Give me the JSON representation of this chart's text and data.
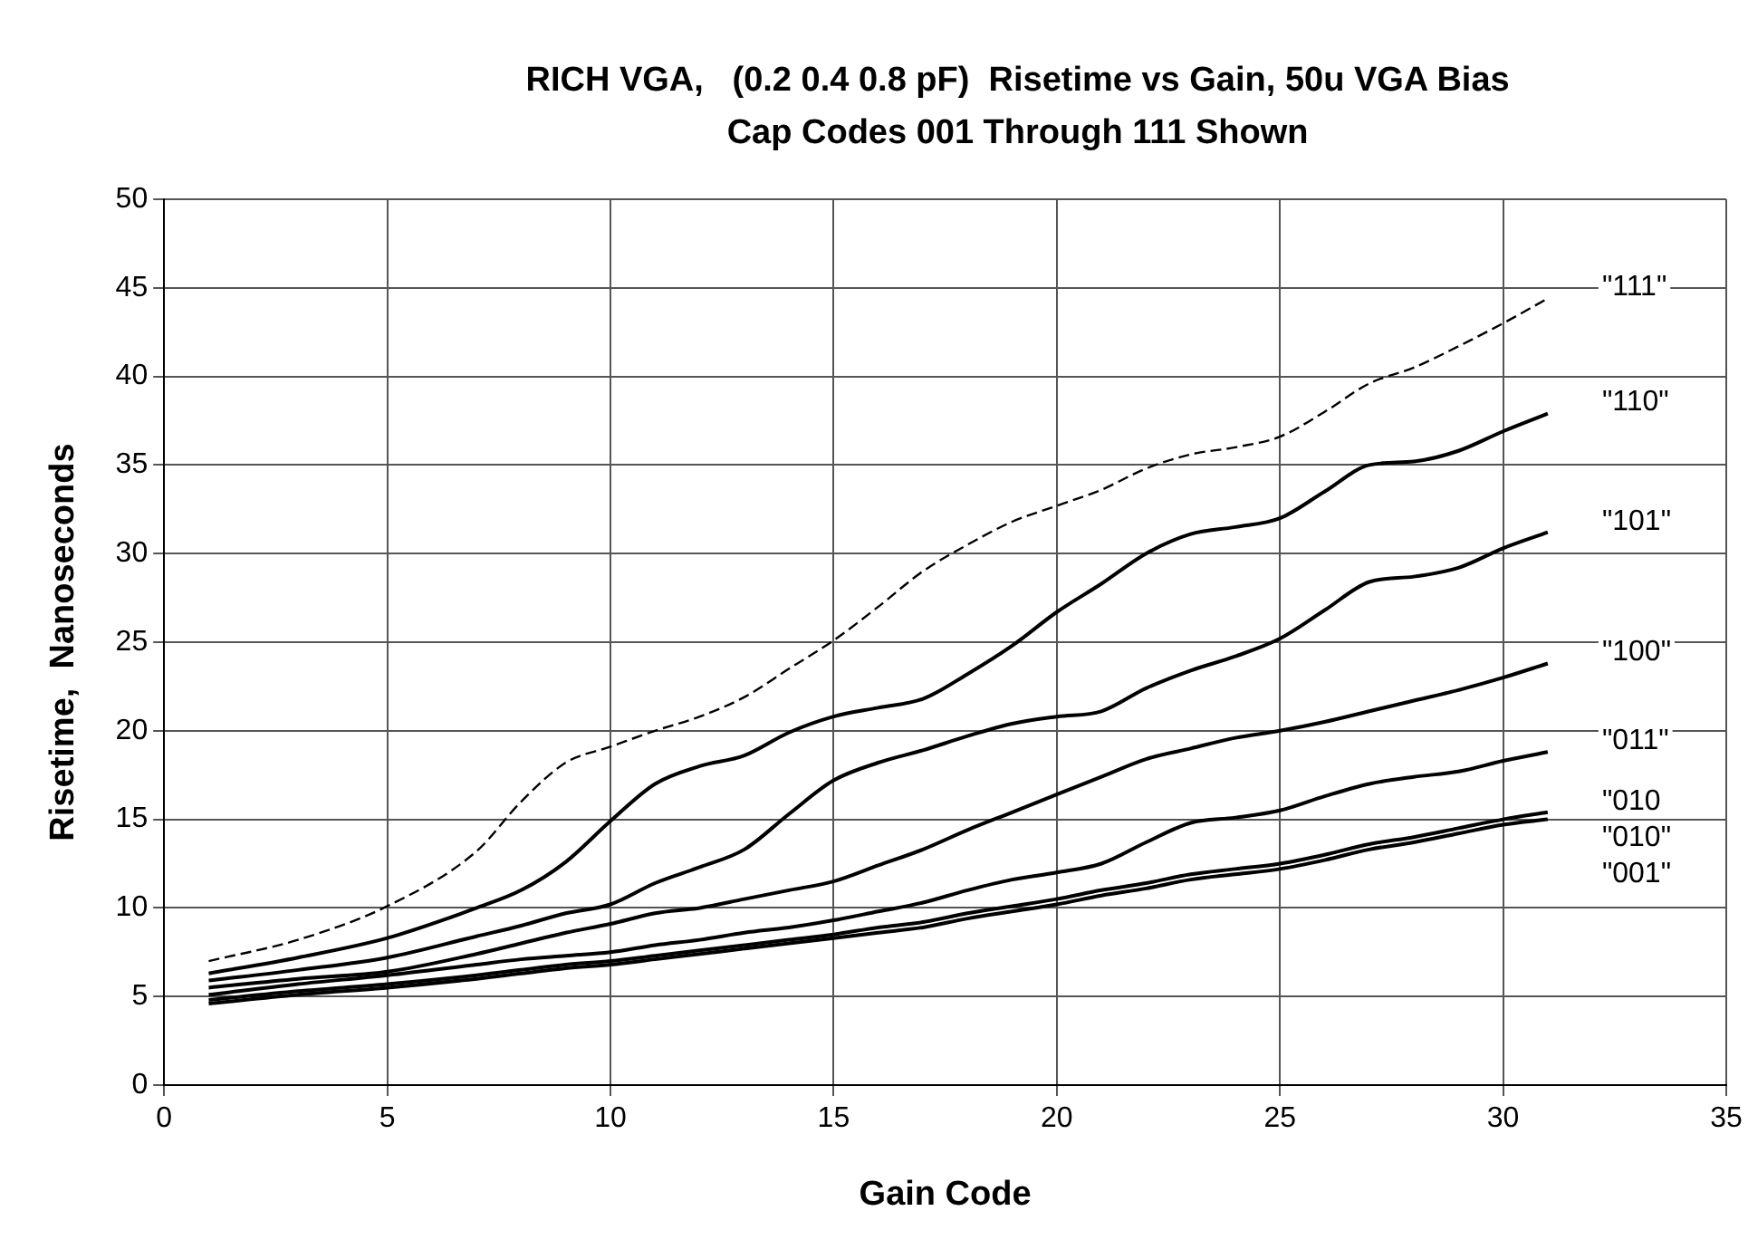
{
  "chart_data": {
    "type": "line",
    "title": "RICH VGA,   (0.2 0.4 0.8 pF)  Risetime vs Gain, 50u VGA Bias",
    "subtitle": "Cap Codes 001 Through 111 Shown",
    "xlabel": "Gain Code",
    "ylabel": "Risetime,  Nanoseconds",
    "x": [
      1,
      3,
      5,
      7,
      8,
      9,
      10,
      11,
      12,
      13,
      14,
      15,
      16,
      17,
      18,
      19,
      20,
      21,
      22,
      23,
      24,
      25,
      26,
      27,
      28,
      29,
      30,
      31
    ],
    "series": [
      {
        "color": "#000000",
        "line_style": "dashed",
        "values": [
          7.0,
          8.2,
          10.1,
          13.2,
          16.0,
          18.2,
          19.1,
          20.0,
          20.8,
          21.9,
          23.5,
          25.1,
          27.0,
          29.0,
          30.5,
          31.8,
          32.7,
          33.6,
          34.8,
          35.6,
          36.0,
          36.6,
          38.0,
          39.6,
          40.5,
          41.7,
          43.0,
          44.4
        ]
      },
      {
        "color": "#000000",
        "values": [
          6.3,
          7.2,
          8.3,
          10.0,
          11.0,
          12.6,
          14.9,
          17.0,
          18.0,
          18.6,
          19.9,
          20.8,
          21.3,
          21.8,
          23.2,
          24.8,
          26.7,
          28.3,
          30.0,
          31.1,
          31.5,
          32.0,
          33.5,
          35.0,
          35.2,
          35.8,
          36.9,
          37.9
        ]
      },
      {
        "color": "#000000",
        "values": [
          5.9,
          6.5,
          7.2,
          8.4,
          9.0,
          9.7,
          10.2,
          11.4,
          12.3,
          13.3,
          15.3,
          17.2,
          18.2,
          18.9,
          19.7,
          20.4,
          20.8,
          21.1,
          22.4,
          23.4,
          24.2,
          25.2,
          26.8,
          28.4,
          28.7,
          29.2,
          30.3,
          31.2
        ]
      },
      {
        "color": "#000000",
        "values": [
          5.5,
          6.0,
          6.4,
          7.4,
          8.0,
          8.6,
          9.1,
          9.7,
          10.0,
          10.5,
          11.0,
          11.5,
          12.4,
          13.3,
          14.4,
          15.4,
          16.4,
          17.4,
          18.4,
          19.0,
          19.6,
          20.0,
          20.5,
          21.1,
          21.7,
          22.3,
          23.0,
          23.8
        ]
      },
      {
        "color": "#000000",
        "values": [
          5.1,
          5.7,
          6.2,
          6.8,
          7.1,
          7.3,
          7.5,
          7.9,
          8.2,
          8.6,
          8.9,
          9.3,
          9.8,
          10.3,
          11.0,
          11.6,
          12.0,
          12.5,
          13.7,
          14.8,
          15.1,
          15.5,
          16.3,
          17.0,
          17.4,
          17.7,
          18.3,
          18.8
        ]
      },
      {
        "color": "#000000",
        "values": [
          4.8,
          5.3,
          5.7,
          6.2,
          6.5,
          6.8,
          7.0,
          7.3,
          7.6,
          7.9,
          8.2,
          8.5,
          8.9,
          9.2,
          9.7,
          10.1,
          10.5,
          11.0,
          11.4,
          11.9,
          12.2,
          12.5,
          13.0,
          13.6,
          14.0,
          14.5,
          15.0,
          15.4
        ]
      },
      {
        "color": "#000000",
        "values": [
          4.6,
          5.1,
          5.5,
          6.0,
          6.3,
          6.6,
          6.8,
          7.1,
          7.4,
          7.7,
          8.0,
          8.3,
          8.6,
          8.9,
          9.4,
          9.8,
          10.2,
          10.7,
          11.1,
          11.6,
          11.9,
          12.2,
          12.7,
          13.3,
          13.7,
          14.2,
          14.7,
          15.0
        ]
      }
    ],
    "annotations": [
      "\"111\"",
      "\"110\"",
      "\"101\"",
      "\"100\"",
      "\"011\"",
      "\"010",
      "\"010\"",
      "\"001\""
    ],
    "xlim": [
      0,
      35
    ],
    "xticks": [
      0,
      5,
      10,
      15,
      20,
      25,
      30,
      35
    ],
    "ylim": [
      0,
      50
    ],
    "yticks": [
      0,
      5,
      10,
      15,
      20,
      25,
      30,
      35,
      40,
      45,
      50
    ],
    "grid": true,
    "legend": false,
    "marker": "none"
  }
}
